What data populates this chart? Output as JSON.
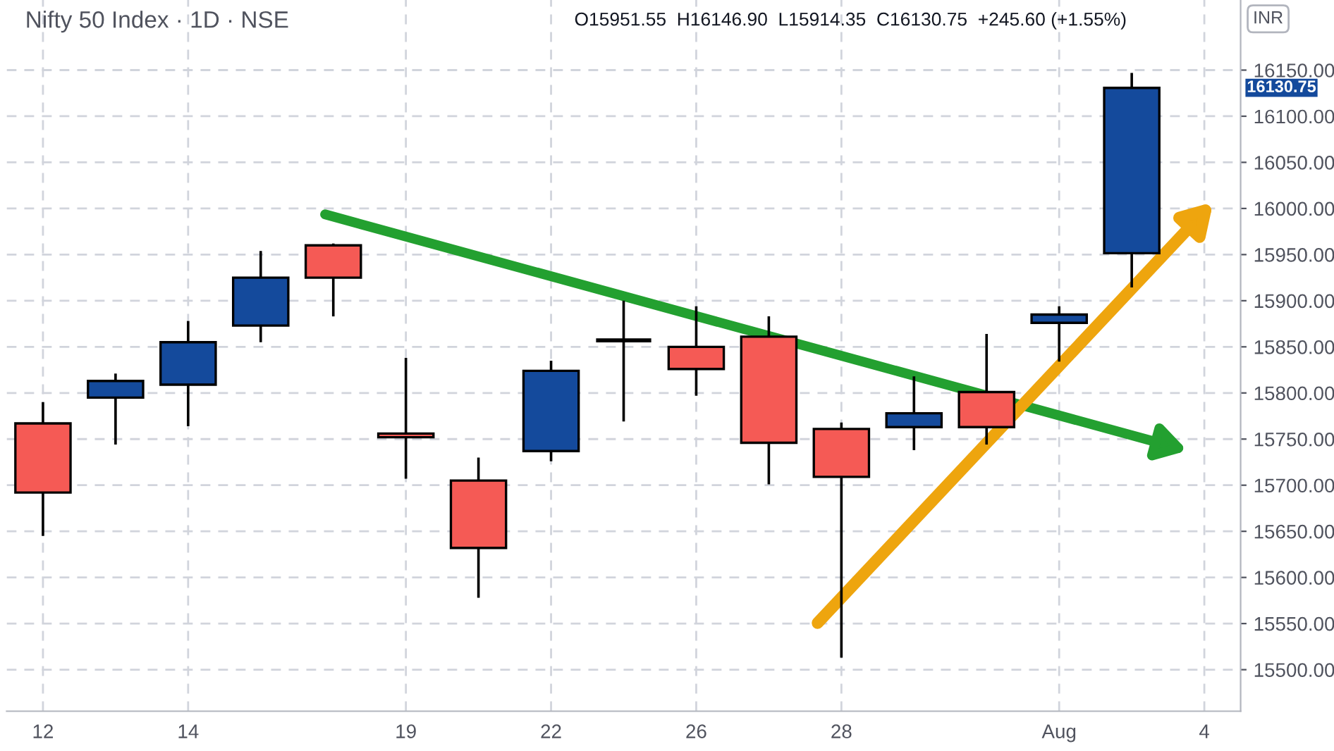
{
  "chart_data": {
    "type": "candlestick",
    "title": "Nifty 50 Index · 1D · NSE",
    "subtitle": "O15951.55  H16146.90  L15914.35  C16130.75  +245.60 (+1.55%)",
    "categories": [
      "12",
      null,
      "14",
      null,
      null,
      "19",
      null,
      "22",
      null,
      "26",
      null,
      "28",
      null,
      null,
      "Aug",
      null,
      "4"
    ],
    "ohlc": [
      [
        15767,
        15790,
        15645,
        15692
      ],
      [
        15795,
        15821,
        15744,
        15813
      ],
      [
        15809,
        15878,
        15764,
        15855
      ],
      [
        15873,
        15954,
        15855,
        15925
      ],
      [
        15960,
        15962,
        15883,
        15925
      ],
      [
        15756,
        15838,
        15707,
        15752
      ],
      [
        15705,
        15730,
        15578,
        15632
      ],
      [
        15737,
        15835,
        15726,
        15824
      ],
      [
        15857,
        15900,
        15769,
        15857
      ],
      [
        15850,
        15894,
        15797,
        15826
      ],
      [
        15861,
        15883,
        15701,
        15746
      ],
      [
        15761,
        15768,
        15513,
        15709
      ],
      [
        15763,
        15818,
        15738,
        15778
      ],
      [
        15801,
        15864,
        15744,
        15763
      ],
      [
        15876,
        15894,
        15834,
        15885
      ],
      [
        15951.55,
        16146.9,
        15914.35,
        16130.75
      ],
      null
    ],
    "colors": [
      "#f55a55",
      "#144a9c",
      "#144a9c",
      "#144a9c",
      "#f55a55",
      "#f55a55",
      "#f55a55",
      "#144a9c",
      "#000000",
      "#f55a55",
      "#f55a55",
      "#f55a55",
      "#144a9c",
      "#f55a55",
      "#144a9c",
      "#144a9c",
      null
    ],
    "ylim": [
      15455,
      16226
    ],
    "yticks": [
      {
        "value": 15500,
        "label": "15500.00"
      },
      {
        "value": 15550,
        "label": "15550.00"
      },
      {
        "value": 15600,
        "label": "15600.00"
      },
      {
        "value": 15650,
        "label": "15650.00"
      },
      {
        "value": 15700,
        "label": "15700.00"
      },
      {
        "value": 15750,
        "label": "15750.00"
      },
      {
        "value": 15800,
        "label": "15800.00"
      },
      {
        "value": 15850,
        "label": "15850.00"
      },
      {
        "value": 15900,
        "label": "15900.00"
      },
      {
        "value": 15950,
        "label": "15950.00"
      },
      {
        "value": 16000,
        "label": "16000.00"
      },
      {
        "value": 16050,
        "label": "16050.00"
      },
      {
        "value": 16100,
        "label": "16100.00"
      },
      {
        "value": 16150,
        "label": "16150.00"
      }
    ],
    "grid": true,
    "annotations": [
      "16130.75",
      "INR"
    ]
  }
}
